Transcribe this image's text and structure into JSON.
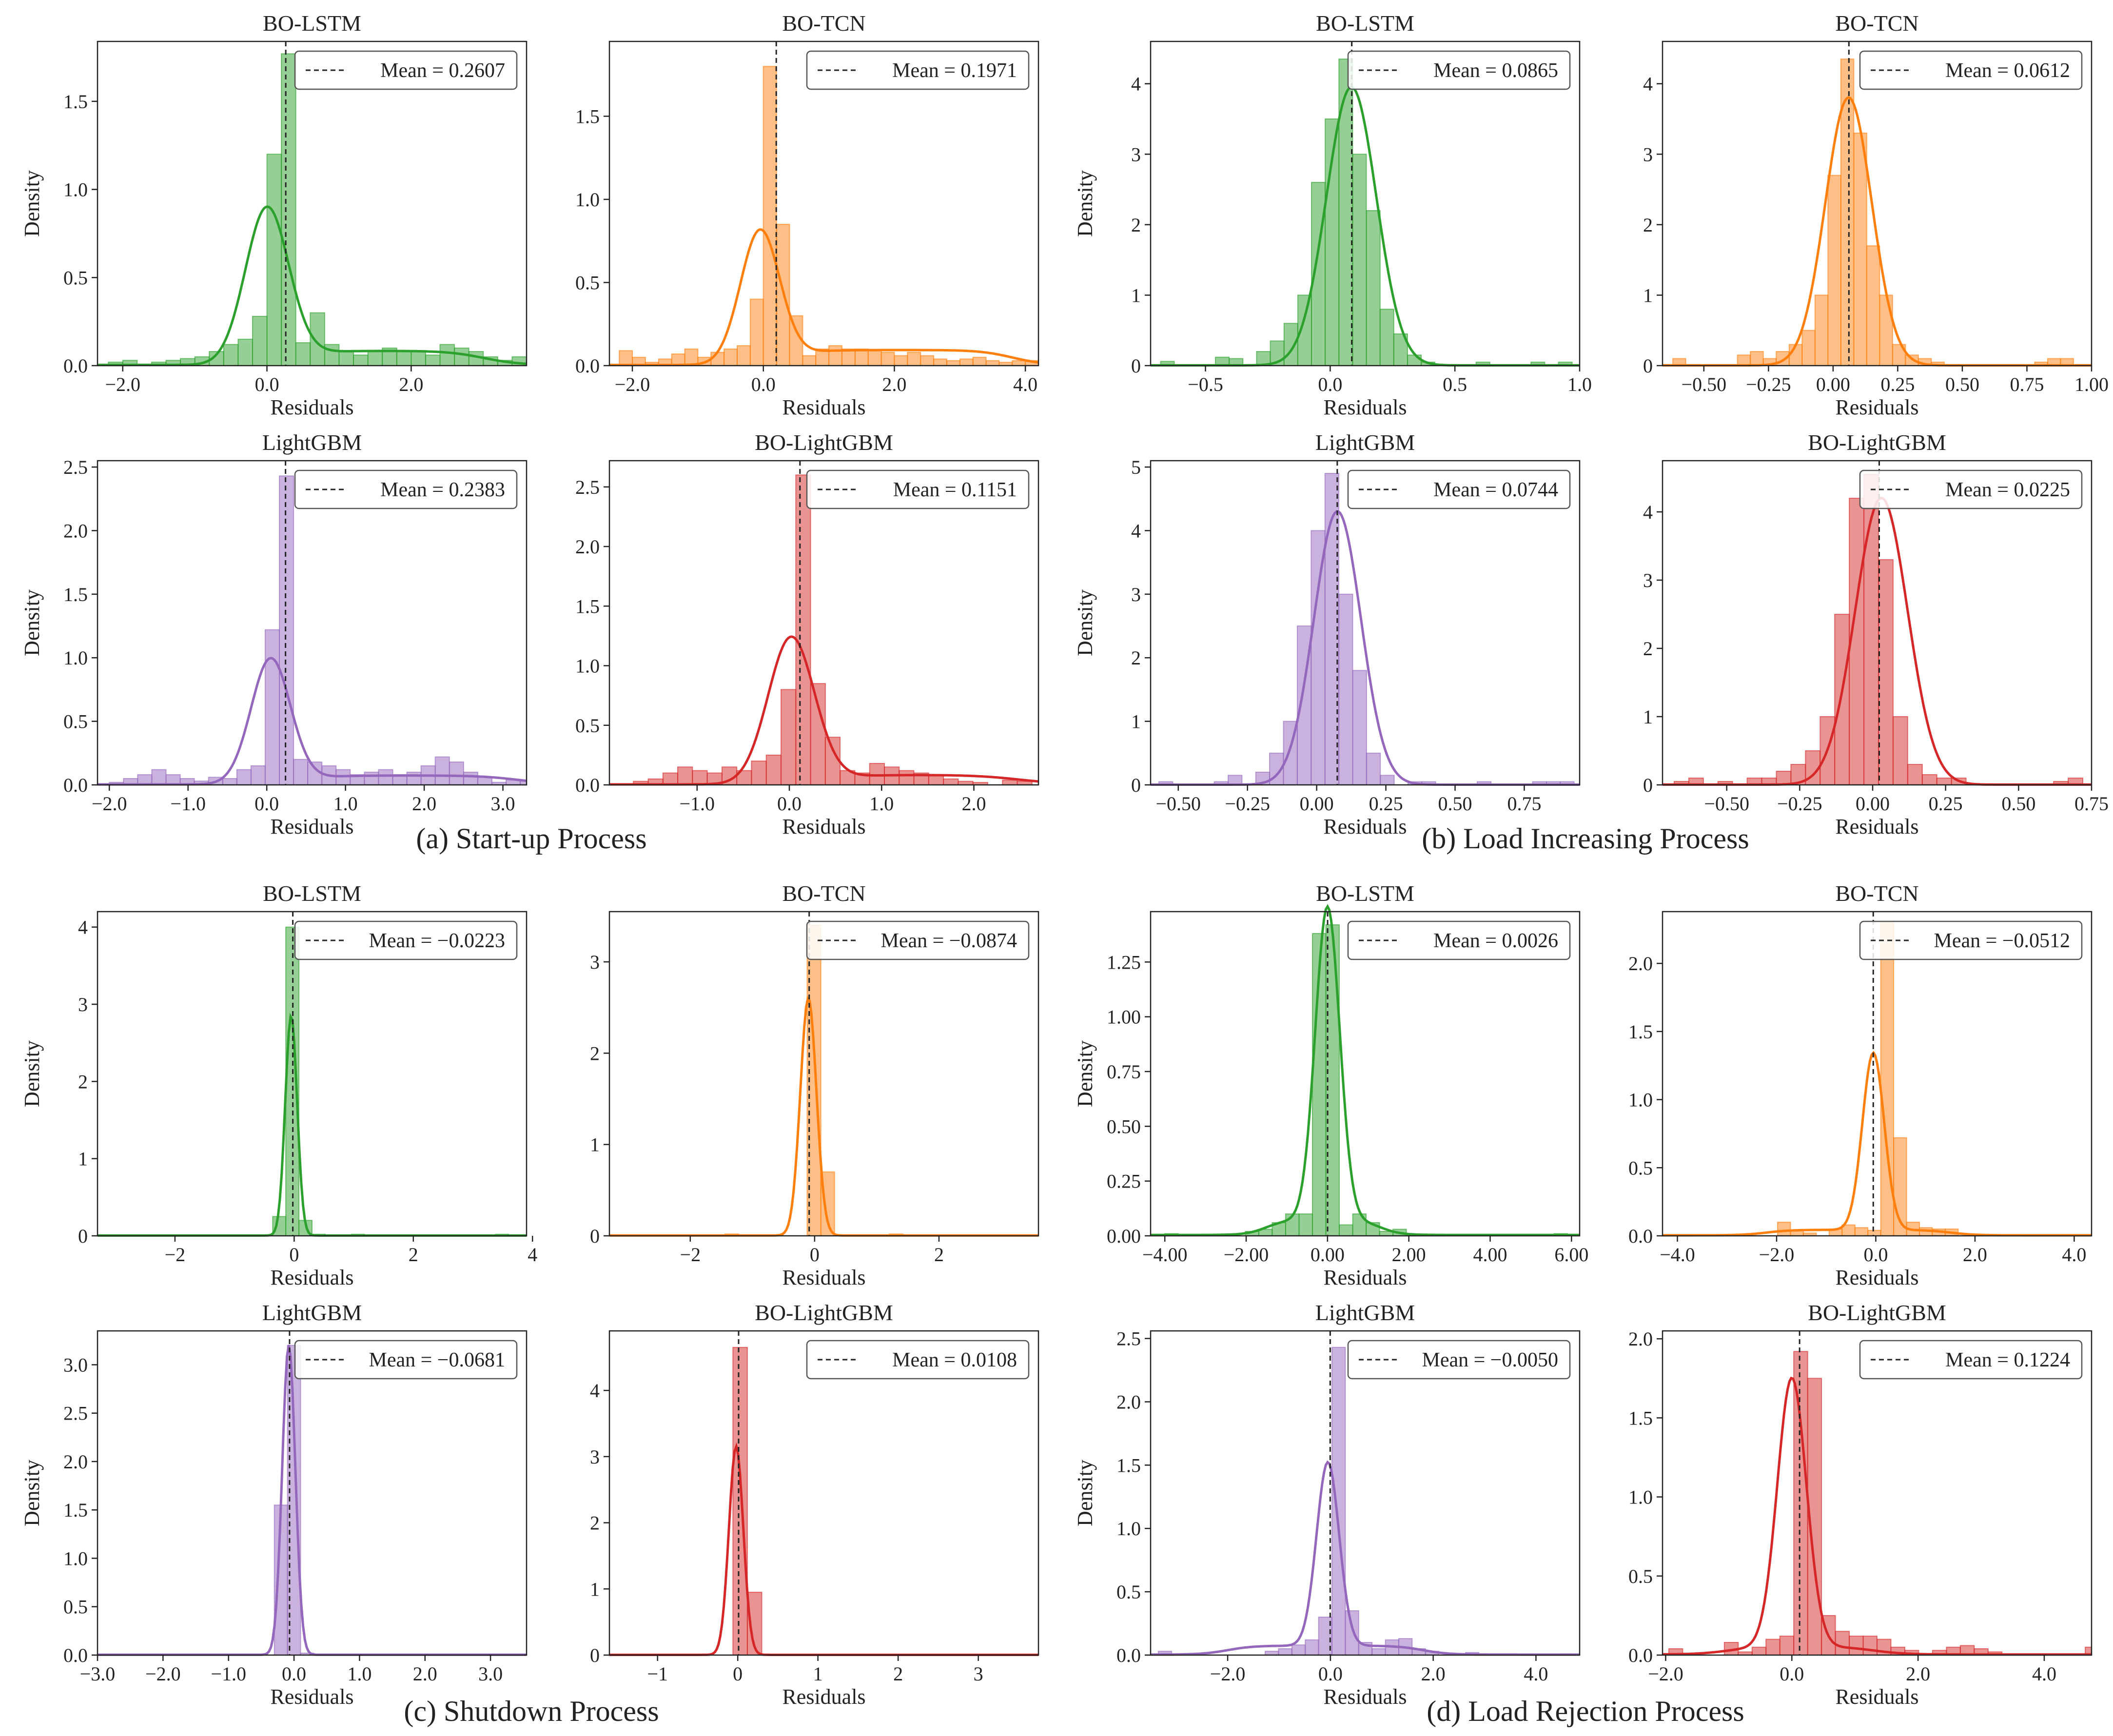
{
  "figure": {
    "groups": [
      {
        "caption": "(a) Start-up Process"
      },
      {
        "caption": "(b) Load Increasing Process"
      },
      {
        "caption": "(c) Shutdown Process"
      },
      {
        "caption": "(d) Load Rejection Process"
      }
    ]
  },
  "colors": {
    "green": "#2ca02c",
    "orange": "#ff7f0e",
    "purple": "#9467bd",
    "red": "#d62728"
  },
  "chart_data": [
    {
      "type": "bar",
      "group": 0,
      "title": "BO-LSTM",
      "xlabel": "Residuals",
      "ylabel": "Density",
      "color": "green",
      "legend": "Mean = 0.2607",
      "mean": 0.2607,
      "xlim": [
        -2.35,
        3.6
      ],
      "ylim": [
        0,
        1.84
      ],
      "xticks": [
        -2,
        0,
        2
      ],
      "yticks": [
        0.0,
        0.5,
        1.0,
        1.5
      ],
      "tick_decimals": 1,
      "bins": {
        "start": -2.2,
        "width": 0.2
      },
      "hist": [
        0.02,
        0.03,
        0.0,
        0.02,
        0.03,
        0.04,
        0.05,
        0.08,
        0.12,
        0.15,
        0.28,
        1.2,
        1.77,
        0.13,
        0.3,
        0.12,
        0.08,
        0.06,
        0.08,
        0.1,
        0.08,
        0.08,
        0.06,
        0.12,
        0.1,
        0.08,
        0.05,
        0.03,
        0.05
      ],
      "kde": {
        "peak": 0.88,
        "center": 0.0,
        "sigma": 0.3,
        "tail_amp": 0.08,
        "tail_lo": 0.3,
        "tail_hi": 3.0
      }
    },
    {
      "type": "bar",
      "group": 0,
      "title": "BO-TCN",
      "xlabel": "Residuals",
      "ylabel": "",
      "color": "orange",
      "legend": "Mean = 0.1971",
      "mean": 0.1971,
      "xlim": [
        -2.35,
        4.2
      ],
      "ylim": [
        0,
        1.95
      ],
      "xticks": [
        -2,
        0,
        2,
        4
      ],
      "yticks": [
        0.0,
        0.5,
        1.0,
        1.5
      ],
      "tick_decimals": 1,
      "bins": {
        "start": -2.2,
        "width": 0.2
      },
      "hist": [
        0.09,
        0.05,
        0.02,
        0.04,
        0.07,
        0.1,
        0.05,
        0.08,
        0.1,
        0.12,
        0.4,
        1.8,
        0.85,
        0.3,
        0.06,
        0.1,
        0.12,
        0.1,
        0.1,
        0.09,
        0.08,
        0.06,
        0.08,
        0.06,
        0.04,
        0.03,
        0.04,
        0.05,
        0.03,
        0.02,
        0.03,
        0.03
      ],
      "kde": {
        "peak": 0.8,
        "center": -0.05,
        "sigma": 0.3,
        "tail_amp": 0.09,
        "tail_lo": 0.35,
        "tail_hi": 3.8
      }
    },
    {
      "type": "bar",
      "group": 1,
      "title": "BO-LSTM",
      "xlabel": "Residuals",
      "ylabel": "Density",
      "color": "green",
      "legend": "Mean = 0.0865",
      "mean": 0.0865,
      "xlim": [
        -0.72,
        1.0
      ],
      "ylim": [
        0,
        4.6
      ],
      "xticks": [
        -0.5,
        0.0,
        0.5,
        1.0
      ],
      "yticks": [
        0,
        1,
        2,
        3,
        4
      ],
      "tick_decimals": 1,
      "ytick_decimals": 0,
      "bins": {
        "start": -0.68,
        "width": 0.055
      },
      "hist": [
        0.06,
        0.0,
        0.0,
        0.0,
        0.12,
        0.1,
        0.0,
        0.2,
        0.35,
        0.6,
        1.0,
        2.6,
        3.5,
        4.35,
        3.0,
        2.2,
        0.8,
        0.45,
        0.15,
        0.05,
        0.0,
        0.0,
        0.0,
        0.05,
        0.0,
        0.0,
        0.0,
        0.05,
        0.0,
        0.05
      ],
      "kde": {
        "peak": 3.95,
        "center": 0.085,
        "sigma": 0.1,
        "tail_amp": 0.0,
        "tail_lo": 0,
        "tail_hi": 0
      }
    },
    {
      "type": "bar",
      "group": 1,
      "title": "BO-TCN",
      "xlabel": "Residuals",
      "ylabel": "",
      "color": "orange",
      "legend": "Mean = 0.0612",
      "mean": 0.0612,
      "xlim": [
        -0.66,
        1.0
      ],
      "ylim": [
        0,
        4.6
      ],
      "xticks": [
        -0.5,
        -0.25,
        0.0,
        0.25,
        0.5,
        0.75,
        1.0
      ],
      "yticks": [
        0,
        1,
        2,
        3,
        4
      ],
      "tick_decimals": 2,
      "ytick_decimals": 0,
      "bins": {
        "start": -0.62,
        "width": 0.05
      },
      "hist": [
        0.1,
        0.0,
        0.0,
        0.0,
        0.0,
        0.15,
        0.2,
        0.1,
        0.2,
        0.3,
        0.5,
        1.0,
        2.7,
        4.35,
        3.3,
        1.7,
        1.0,
        0.3,
        0.15,
        0.1,
        0.05,
        0.0,
        0.0,
        0.0,
        0.0,
        0.0,
        0.0,
        0.0,
        0.05,
        0.1,
        0.1
      ],
      "kde": {
        "peak": 3.8,
        "center": 0.06,
        "sigma": 0.09,
        "tail_amp": 0.0,
        "tail_lo": 0,
        "tail_hi": 0
      }
    },
    {
      "type": "bar",
      "group": 0,
      "title": "LightGBM",
      "xlabel": "Residuals",
      "ylabel": "Density",
      "color": "purple",
      "legend": "Mean = 0.2383",
      "mean": 0.2383,
      "xlim": [
        -2.15,
        3.3
      ],
      "ylim": [
        0,
        2.55
      ],
      "xticks": [
        -2,
        -1,
        0,
        1,
        2,
        3
      ],
      "yticks": [
        0.0,
        0.5,
        1.0,
        1.5,
        2.0,
        2.5
      ],
      "tick_decimals": 1,
      "bins": {
        "start": -2.0,
        "width": 0.18
      },
      "hist": [
        0.02,
        0.05,
        0.08,
        0.12,
        0.08,
        0.05,
        0.03,
        0.06,
        0.05,
        0.12,
        0.15,
        1.22,
        2.43,
        0.2,
        0.18,
        0.15,
        0.12,
        0.08,
        0.1,
        0.12,
        0.08,
        0.1,
        0.15,
        0.22,
        0.18,
        0.1,
        0.06,
        0.02,
        0.04,
        0.03
      ],
      "kde": {
        "peak": 0.98,
        "center": 0.05,
        "sigma": 0.25,
        "tail_amp": 0.07,
        "tail_lo": 0.4,
        "tail_hi": 3.2
      }
    },
    {
      "type": "bar",
      "group": 0,
      "title": "BO-LightGBM",
      "xlabel": "Residuals",
      "ylabel": "",
      "color": "red",
      "legend": "Mean = 0.1151",
      "mean": 0.1151,
      "xlim": [
        -1.95,
        2.7
      ],
      "ylim": [
        0,
        2.72
      ],
      "xticks": [
        -1,
        0,
        1,
        2
      ],
      "yticks": [
        0.0,
        0.5,
        1.0,
        1.5,
        2.0,
        2.5
      ],
      "tick_decimals": 1,
      "bins": {
        "start": -1.85,
        "width": 0.16
      },
      "hist": [
        0.0,
        0.03,
        0.05,
        0.1,
        0.15,
        0.12,
        0.1,
        0.15,
        0.12,
        0.2,
        0.25,
        0.8,
        2.6,
        0.85,
        0.4,
        0.12,
        0.1,
        0.18,
        0.15,
        0.12,
        0.1,
        0.08,
        0.05,
        0.03,
        0.02,
        0.0,
        0.04,
        0.03,
        0.0
      ],
      "kde": {
        "peak": 1.22,
        "center": 0.02,
        "sigma": 0.25,
        "tail_amp": 0.08,
        "tail_lo": 0.3,
        "tail_hi": 2.5
      }
    },
    {
      "type": "bar",
      "group": 1,
      "title": "LightGBM",
      "xlabel": "Residuals",
      "ylabel": "Density",
      "color": "purple",
      "legend": "Mean = 0.0744",
      "mean": 0.0744,
      "xlim": [
        -0.6,
        0.95
      ],
      "ylim": [
        0,
        5.1
      ],
      "xticks": [
        -0.5,
        -0.25,
        0.0,
        0.25,
        0.5,
        0.75
      ],
      "yticks": [
        0,
        1,
        2,
        3,
        4,
        5
      ],
      "tick_decimals": 2,
      "ytick_decimals": 0,
      "bins": {
        "start": -0.57,
        "width": 0.05
      },
      "hist": [
        0.05,
        0.0,
        0.0,
        0.0,
        0.05,
        0.15,
        0.0,
        0.2,
        0.5,
        1.0,
        2.5,
        4.0,
        4.9,
        3.0,
        1.8,
        0.5,
        0.15,
        0.0,
        0.05,
        0.05,
        0.0,
        0.0,
        0.0,
        0.05,
        0.0,
        0.0,
        0.0,
        0.05,
        0.05,
        0.05
      ],
      "kde": {
        "peak": 4.3,
        "center": 0.075,
        "sigma": 0.085,
        "tail_amp": 0.0,
        "tail_lo": 0,
        "tail_hi": 0
      }
    },
    {
      "type": "bar",
      "group": 1,
      "title": "BO-LightGBM",
      "xlabel": "Residuals",
      "ylabel": "",
      "color": "red",
      "legend": "Mean = 0.0225",
      "mean": 0.0225,
      "xlim": [
        -0.72,
        0.75
      ],
      "ylim": [
        0,
        4.75
      ],
      "xticks": [
        -0.5,
        -0.25,
        0.0,
        0.25,
        0.5,
        0.75
      ],
      "yticks": [
        0,
        1,
        2,
        3,
        4
      ],
      "tick_decimals": 2,
      "ytick_decimals": 0,
      "bins": {
        "start": -0.68,
        "width": 0.05
      },
      "hist": [
        0.05,
        0.1,
        0.0,
        0.05,
        0.0,
        0.1,
        0.1,
        0.2,
        0.3,
        0.5,
        1.0,
        2.5,
        4.2,
        4.55,
        3.3,
        1.0,
        0.3,
        0.15,
        0.1,
        0.1,
        0.0,
        0.0,
        0.0,
        0.0,
        0.0,
        0.0,
        0.05,
        0.1
      ],
      "kde": {
        "peak": 4.2,
        "center": 0.03,
        "sigma": 0.09,
        "tail_amp": 0.0,
        "tail_lo": 0,
        "tail_hi": 0
      }
    },
    {
      "type": "bar",
      "group": 2,
      "title": "BO-LSTM",
      "xlabel": "Residuals",
      "ylabel": "Density",
      "color": "green",
      "legend": "Mean = −0.0223",
      "mean": -0.0223,
      "xlim": [
        -3.3,
        3.9
      ],
      "ylim": [
        0,
        4.2
      ],
      "xticks": [
        -2,
        0,
        2,
        4
      ],
      "yticks": [
        0,
        1,
        2,
        3,
        4
      ],
      "tick_decimals": 0,
      "bins": {
        "start": -3.0,
        "width": 0.22
      },
      "hist": [
        0.01,
        0.0,
        0.0,
        0.0,
        0.0,
        0.0,
        0.0,
        0.0,
        0.0,
        0.0,
        0.0,
        0.0,
        0.25,
        4.0,
        0.2,
        0.02,
        0.0,
        0.0,
        0.02,
        0.0,
        0.0,
        0.0,
        0.0,
        0.0,
        0.0,
        0.0,
        0.0,
        0.0,
        0.0,
        0.02,
        0.0,
        0.0
      ],
      "kde": {
        "peak": 2.85,
        "center": -0.05,
        "sigma": 0.1,
        "tail_amp": 0.0,
        "tail_lo": 0,
        "tail_hi": 0
      }
    },
    {
      "type": "bar",
      "group": 2,
      "title": "BO-TCN",
      "xlabel": "Residuals",
      "ylabel": "",
      "color": "orange",
      "legend": "Mean = −0.0874",
      "mean": -0.0874,
      "xlim": [
        -3.3,
        3.6
      ],
      "ylim": [
        0,
        3.55
      ],
      "xticks": [
        -2,
        0,
        2
      ],
      "yticks": [
        0,
        1,
        2,
        3
      ],
      "tick_decimals": 0,
      "bins": {
        "start": -3.2,
        "width": 0.22
      },
      "hist": [
        0.01,
        0.0,
        0.0,
        0.0,
        0.0,
        0.0,
        0.0,
        0.0,
        0.02,
        0.0,
        0.0,
        0.0,
        0.0,
        0.0,
        3.4,
        0.7,
        0.0,
        0.0,
        0.0,
        0.0,
        0.02,
        0.0,
        0.0,
        0.0,
        0.0,
        0.0,
        0.0,
        0.0,
        0.0,
        0.01,
        0.0,
        0.0
      ],
      "kde": {
        "peak": 2.6,
        "center": -0.1,
        "sigma": 0.13,
        "tail_amp": 0.0,
        "tail_lo": 0,
        "tail_hi": 0
      }
    },
    {
      "type": "bar",
      "group": 3,
      "title": "BO-LSTM",
      "xlabel": "Residuals",
      "ylabel": "Density",
      "color": "green",
      "legend": "Mean = 0.0026",
      "mean": 0.0026,
      "xlim": [
        -4.35,
        6.2
      ],
      "ylim": [
        0,
        1.48
      ],
      "xticks": [
        -4,
        -2,
        0,
        2,
        4,
        6
      ],
      "yticks": [
        0.0,
        0.25,
        0.5,
        0.75,
        1.0,
        1.25
      ],
      "tick_decimals": 2,
      "bins": {
        "start": -4.0,
        "width": 0.33
      },
      "hist": [
        0.01,
        0.0,
        0.0,
        0.0,
        0.0,
        0.0,
        0.02,
        0.03,
        0.06,
        0.1,
        0.1,
        1.38,
        1.42,
        0.05,
        0.1,
        0.06,
        0.02,
        0.03,
        0.0,
        0.0,
        0.0,
        0.0,
        0.0,
        0.0,
        0.0,
        0.0,
        0.0,
        0.0,
        0.0,
        0.01
      ],
      "kde": {
        "peak": 1.43,
        "center": 0.0,
        "sigma": 0.3,
        "tail_amp": 0.07,
        "tail_lo": -1.5,
        "tail_hi": 1.3
      }
    },
    {
      "type": "bar",
      "group": 3,
      "title": "BO-TCN",
      "xlabel": "Residuals",
      "ylabel": "",
      "color": "orange",
      "legend": "Mean = −0.0512",
      "mean": -0.0512,
      "xlim": [
        -4.3,
        4.35
      ],
      "ylim": [
        0,
        2.38
      ],
      "xticks": [
        -4,
        -2,
        0,
        2,
        4
      ],
      "yticks": [
        0.0,
        0.5,
        1.0,
        1.5,
        2.0
      ],
      "tick_decimals": 1,
      "bins": {
        "start": -3.8,
        "width": 0.26
      },
      "hist": [
        0.0,
        0.0,
        0.0,
        0.0,
        0.0,
        0.0,
        0.0,
        0.1,
        0.04,
        0.02,
        0.0,
        0.05,
        0.08,
        0.06,
        0.04,
        2.3,
        0.72,
        0.1,
        0.06,
        0.05,
        0.05,
        0.0,
        0.0,
        0.0,
        0.0,
        0.0,
        0.0,
        0.0,
        0.0,
        0.01
      ],
      "kde": {
        "peak": 1.3,
        "center": -0.05,
        "sigma": 0.22,
        "tail_amp": 0.04,
        "tail_lo": -2.2,
        "tail_hi": 1.5
      }
    },
    {
      "type": "bar",
      "group": 2,
      "title": "LightGBM",
      "xlabel": "Residuals",
      "ylabel": "Density",
      "color": "purple",
      "legend": "Mean = −0.0681",
      "mean": -0.0681,
      "xlim": [
        -3.0,
        3.55
      ],
      "ylim": [
        0,
        3.35
      ],
      "xticks": [
        -3,
        -2,
        -1,
        0,
        1,
        2,
        3
      ],
      "yticks": [
        0.0,
        0.5,
        1.0,
        1.5,
        2.0,
        2.5,
        3.0
      ],
      "tick_decimals": 1,
      "bins": {
        "start": -2.9,
        "width": 0.2
      },
      "hist": [
        0.0,
        0.0,
        0.0,
        0.0,
        0.0,
        0.0,
        0.0,
        0.0,
        0.0,
        0.0,
        0.0,
        0.0,
        0.0,
        1.55,
        3.2,
        0.02,
        0.0,
        0.0,
        0.0,
        0.0,
        0.0,
        0.0,
        0.0,
        0.0,
        0.0,
        0.0,
        0.0,
        0.0,
        0.0,
        0.0,
        0.0,
        0.0
      ],
      "kde": {
        "peak": 3.2,
        "center": -0.08,
        "sigma": 0.1,
        "tail_amp": 0.0,
        "tail_lo": 0,
        "tail_hi": 0
      }
    },
    {
      "type": "bar",
      "group": 2,
      "title": "BO-LightGBM",
      "xlabel": "Residuals",
      "ylabel": "",
      "color": "red",
      "legend": "Mean = 0.0108",
      "mean": 0.0108,
      "xlim": [
        -1.6,
        3.75
      ],
      "ylim": [
        0,
        4.9
      ],
      "xticks": [
        -1,
        0,
        1,
        2,
        3
      ],
      "yticks": [
        0,
        1,
        2,
        3,
        4
      ],
      "tick_decimals": 0,
      "bins": {
        "start": -1.5,
        "width": 0.18
      },
      "hist": [
        0.0,
        0.0,
        0.0,
        0.0,
        0.0,
        0.0,
        0.0,
        0.0,
        4.65,
        0.95,
        0.0,
        0.0,
        0.0,
        0.0,
        0.0,
        0.0,
        0.0,
        0.0,
        0.0,
        0.0,
        0.0,
        0.0,
        0.0,
        0.0,
        0.0,
        0.0,
        0.0,
        0.0,
        0.01
      ],
      "kde": {
        "peak": 3.15,
        "center": -0.02,
        "sigma": 0.09,
        "tail_amp": 0.0,
        "tail_lo": 0,
        "tail_hi": 0
      }
    },
    {
      "type": "bar",
      "group": 3,
      "title": "LightGBM",
      "xlabel": "Residuals",
      "ylabel": "Density",
      "color": "purple",
      "legend": "Mean = −0.0050",
      "mean": -0.005,
      "xlim": [
        -3.5,
        4.85
      ],
      "ylim": [
        0,
        2.56
      ],
      "xticks": [
        -2,
        0,
        2,
        4
      ],
      "yticks": [
        0.0,
        0.5,
        1.0,
        1.5,
        2.0,
        2.5
      ],
      "tick_decimals": 1,
      "bins": {
        "start": -3.35,
        "width": 0.26
      },
      "hist": [
        0.03,
        0.0,
        0.0,
        0.0,
        0.0,
        0.0,
        0.0,
        0.0,
        0.03,
        0.05,
        0.08,
        0.12,
        0.3,
        2.43,
        0.35,
        0.1,
        0.05,
        0.12,
        0.13,
        0.05,
        0.03,
        0.0,
        0.0,
        0.02,
        0.0,
        0.0,
        0.0,
        0.0,
        0.0,
        0.0,
        0.01
      ],
      "kde": {
        "peak": 1.45,
        "center": -0.05,
        "sigma": 0.22,
        "tail_amp": 0.07,
        "tail_lo": -2.0,
        "tail_hi": 1.8
      }
    },
    {
      "type": "bar",
      "group": 3,
      "title": "BO-LightGBM",
      "xlabel": "Residuals",
      "ylabel": "",
      "color": "red",
      "legend": "Mean = 0.1224",
      "mean": 0.1224,
      "xlim": [
        -2.05,
        4.75
      ],
      "ylim": [
        0,
        2.05
      ],
      "xticks": [
        -2,
        0,
        2,
        4
      ],
      "yticks": [
        0.0,
        0.5,
        1.0,
        1.5,
        2.0
      ],
      "tick_decimals": 1,
      "bins": {
        "start": -1.95,
        "width": 0.22
      },
      "hist": [
        0.04,
        0.0,
        0.0,
        0.0,
        0.08,
        0.02,
        0.05,
        0.1,
        0.12,
        1.92,
        1.75,
        0.25,
        0.15,
        0.12,
        0.12,
        0.1,
        0.05,
        0.03,
        0.0,
        0.03,
        0.05,
        0.06,
        0.04,
        0.02,
        0.0,
        0.0,
        0.0,
        0.0,
        0.0,
        0.0,
        0.05
      ],
      "kde": {
        "peak": 1.7,
        "center": 0.0,
        "sigma": 0.23,
        "tail_amp": 0.05,
        "tail_lo": -1.0,
        "tail_hi": 1.3
      }
    }
  ]
}
